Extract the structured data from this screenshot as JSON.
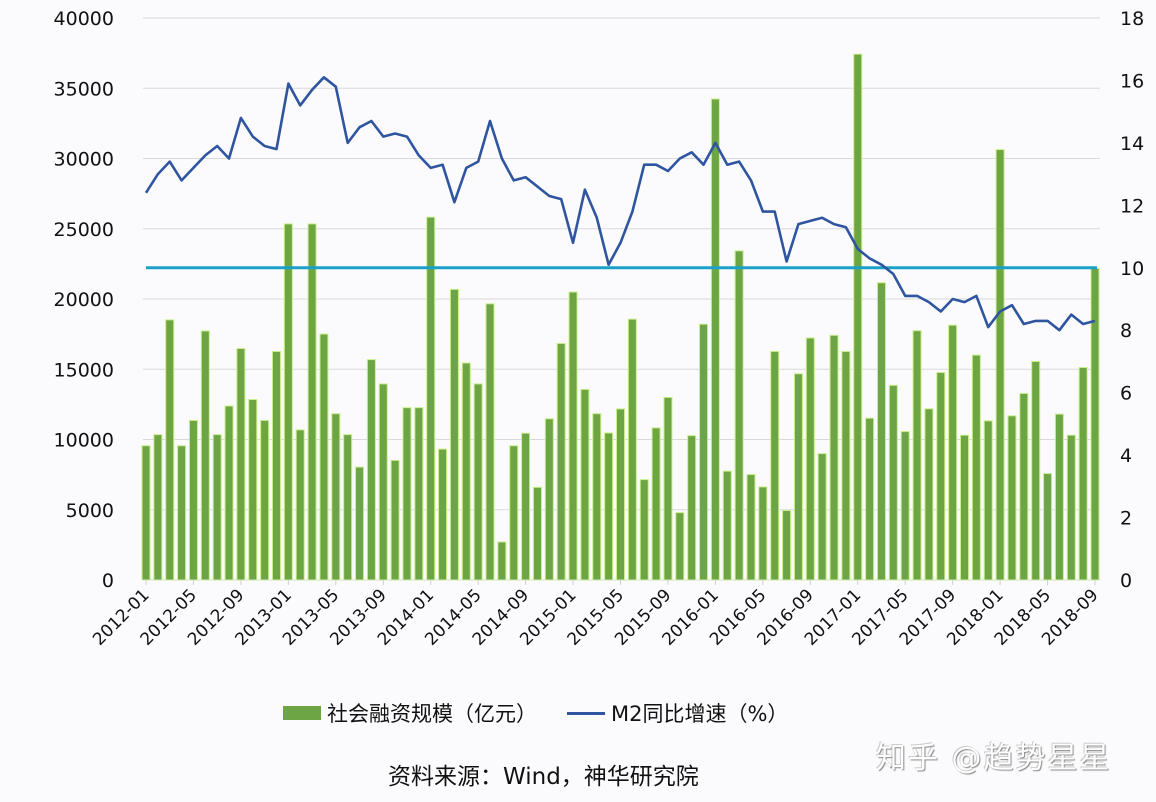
{
  "legend": {
    "bar_label": "社会融资规模（亿元）",
    "line_label": "M2同比增速（%）"
  },
  "source": "资料来源：Wind，神华研究院",
  "watermark": "知乎 @趋势星星",
  "colors": {
    "bar": "#6ea544",
    "bar_edge": "#c9ee8a",
    "m2_line": "#2f55a0",
    "ref_line": "#1ba1c9",
    "grid": "#d9d9d9",
    "text": "#111111"
  },
  "chart_data": {
    "type": "bar+line",
    "title": "",
    "xlabel": "",
    "ylabel": "社会融资规模（亿元）",
    "y2label": "M2同比增速（%）",
    "ylim": [
      0,
      40000
    ],
    "y2lim": [
      0,
      18
    ],
    "yticks": [
      0,
      5000,
      10000,
      15000,
      20000,
      25000,
      30000,
      35000,
      40000
    ],
    "y2ticks": [
      0,
      2,
      4,
      6,
      8,
      10,
      12,
      14,
      16,
      18
    ],
    "grid": true,
    "legend_position": "bottom",
    "xtick_labels": [
      "2012-01",
      "2012-05",
      "2012-09",
      "2013-01",
      "2013-05",
      "2013-09",
      "2014-01",
      "2014-05",
      "2014-09",
      "2015-01",
      "2015-05",
      "2015-09",
      "2016-01",
      "2016-05",
      "2016-09",
      "2017-01",
      "2017-05",
      "2017-09",
      "2018-01",
      "2018-05",
      "2018-09"
    ],
    "categories": [
      "2012-01",
      "2012-02",
      "2012-03",
      "2012-04",
      "2012-05",
      "2012-06",
      "2012-07",
      "2012-08",
      "2012-09",
      "2012-10",
      "2012-11",
      "2012-12",
      "2013-01",
      "2013-02",
      "2013-03",
      "2013-04",
      "2013-05",
      "2013-06",
      "2013-07",
      "2013-08",
      "2013-09",
      "2013-10",
      "2013-11",
      "2013-12",
      "2014-01",
      "2014-02",
      "2014-03",
      "2014-04",
      "2014-05",
      "2014-06",
      "2014-07",
      "2014-08",
      "2014-09",
      "2014-10",
      "2014-11",
      "2014-12",
      "2015-01",
      "2015-02",
      "2015-03",
      "2015-04",
      "2015-05",
      "2015-06",
      "2015-07",
      "2015-08",
      "2015-09",
      "2015-10",
      "2015-11",
      "2015-12",
      "2016-01",
      "2016-02",
      "2016-03",
      "2016-04",
      "2016-05",
      "2016-06",
      "2016-07",
      "2016-08",
      "2016-09",
      "2016-10",
      "2016-11",
      "2016-12",
      "2017-01",
      "2017-02",
      "2017-03",
      "2017-04",
      "2017-05",
      "2017-06",
      "2017-07",
      "2017-08",
      "2017-09",
      "2017-10",
      "2017-11",
      "2017-12",
      "2018-01",
      "2018-02",
      "2018-03",
      "2018-04",
      "2018-05",
      "2018-06",
      "2018-07",
      "2018-08",
      "2018-09"
    ],
    "series": [
      {
        "name": "社会融资规模（亿元）",
        "type": "bar",
        "axis": "left",
        "values": [
          9520,
          10310,
          18480,
          9520,
          11320,
          17690,
          10310,
          12350,
          16440,
          12810,
          11320,
          16230,
          25310,
          10650,
          25310,
          17470,
          11800,
          10310,
          8000,
          15650,
          13920,
          8480,
          12230,
          12230,
          25790,
          9280,
          20650,
          15410,
          13920,
          19620,
          2670,
          9520,
          10410,
          6560,
          11440,
          16800,
          20460,
          13530,
          11800,
          10430,
          12140,
          18530,
          7110,
          10790,
          12960,
          4760,
          10240,
          18170,
          34200,
          7710,
          23390,
          7470,
          6590,
          16230,
          4910,
          14640,
          17190,
          8960,
          17380,
          16230,
          37390,
          11480,
          21120,
          13820,
          10530,
          17710,
          12150,
          14730,
          18100,
          10270,
          15970,
          11290,
          30600,
          11650,
          13240,
          15520,
          7540,
          11770,
          10270,
          15090,
          22140
        ]
      },
      {
        "name": "M2同比增速（%）",
        "type": "line",
        "axis": "right",
        "values": [
          12.4,
          13.0,
          13.4,
          12.8,
          13.2,
          13.6,
          13.9,
          13.5,
          14.8,
          14.2,
          13.9,
          13.8,
          15.9,
          15.2,
          15.7,
          16.1,
          15.8,
          14.0,
          14.5,
          14.7,
          14.2,
          14.3,
          14.2,
          13.6,
          13.2,
          13.3,
          12.1,
          13.2,
          13.4,
          14.7,
          13.5,
          12.8,
          12.9,
          12.6,
          12.3,
          12.2,
          10.8,
          12.5,
          11.6,
          10.1,
          10.8,
          11.8,
          13.3,
          13.3,
          13.1,
          13.5,
          13.7,
          13.3,
          14.0,
          13.3,
          13.4,
          12.8,
          11.8,
          11.8,
          10.2,
          11.4,
          11.5,
          11.6,
          11.4,
          11.3,
          10.6,
          10.3,
          10.1,
          9.8,
          9.1,
          9.1,
          8.9,
          8.6,
          9.0,
          8.9,
          9.1,
          8.1,
          8.6,
          8.8,
          8.2,
          8.3,
          8.3,
          8.0,
          8.5,
          8.2,
          8.3
        ]
      },
      {
        "name": "reference-line",
        "type": "hline",
        "axis": "right",
        "value": 10
      }
    ]
  }
}
